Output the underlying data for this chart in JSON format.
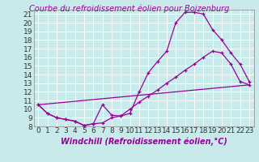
{
  "title": "Courbe du refroidissement éolien pour Boizenburg",
  "xlabel": "Windchill (Refroidissement éolien,°C)",
  "bg_color": "#c8eaea",
  "grid_color": "#ffffff",
  "line_color": "#990099",
  "xlim": [
    -0.5,
    23.5
  ],
  "ylim": [
    8,
    21.5
  ],
  "xticks": [
    0,
    1,
    2,
    3,
    4,
    5,
    6,
    7,
    8,
    9,
    10,
    11,
    12,
    13,
    14,
    15,
    16,
    17,
    18,
    19,
    20,
    21,
    22,
    23
  ],
  "yticks": [
    8,
    9,
    10,
    11,
    12,
    13,
    14,
    15,
    16,
    17,
    18,
    19,
    20,
    21
  ],
  "line1_x": [
    0,
    1,
    2,
    3,
    4,
    5,
    6,
    7,
    8,
    9,
    10,
    11,
    12,
    13,
    14,
    15,
    16,
    17,
    18,
    19,
    20,
    21,
    22,
    23
  ],
  "line1_y": [
    10.5,
    9.5,
    9.0,
    8.8,
    8.6,
    8.1,
    8.3,
    10.5,
    9.3,
    9.2,
    9.5,
    12.0,
    14.2,
    15.5,
    16.7,
    20.0,
    21.2,
    21.2,
    21.0,
    19.2,
    18.0,
    16.5,
    15.2,
    13.2
  ],
  "line2_x": [
    0,
    1,
    2,
    3,
    4,
    5,
    6,
    7,
    8,
    9,
    10,
    11,
    12,
    13,
    14,
    15,
    16,
    17,
    18,
    19,
    20,
    21,
    22,
    23
  ],
  "line2_y": [
    10.5,
    9.5,
    9.0,
    8.8,
    8.6,
    8.1,
    8.3,
    8.4,
    9.0,
    9.2,
    10.0,
    10.8,
    11.5,
    12.2,
    13.0,
    13.7,
    14.5,
    15.2,
    16.0,
    16.7,
    16.5,
    15.2,
    13.2,
    12.8
  ],
  "line3_x": [
    0,
    23
  ],
  "line3_y": [
    10.5,
    12.8
  ],
  "tick_font_size": 6.5,
  "label_font_size": 7,
  "title_font_size": 7
}
